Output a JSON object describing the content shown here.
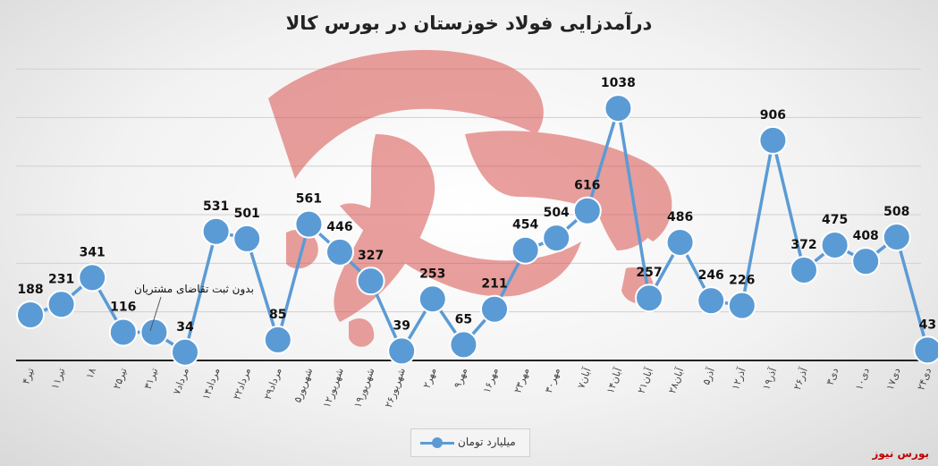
{
  "title": "درآمدزایی فولاد خوزستان در بورس کالا",
  "annotation": "بدون ثبت تقاضای مشتریان",
  "brand": "بورس نیوز",
  "colors": {
    "series": "#5b9bd5",
    "watermark": "#d9534f",
    "brand": "#c00000"
  },
  "chart_data": {
    "type": "line",
    "title": "درآمدزایی فولاد خوزستان در بورس کالا",
    "categories": [
      "۴تیر",
      "۱۱تیر",
      "۱۸",
      "۲۵تیر",
      "۳۱تیر",
      "۷مرداد",
      "۱۴مرداد",
      "۲۲مرداد",
      "۲۹مرداد",
      "۵شهریور",
      "۱۲شهریور",
      "۱۹شهریور",
      "۲۶شهریور",
      "۲مهر",
      "۹مهر",
      "۱۶مهر",
      "۲۳مهر",
      "۳۰مهر",
      "۷آبان",
      "۱۴آبان",
      "۲۱آبان",
      "۲۸آبان",
      "۵آذر",
      "۱۲آذر",
      "۱۹آذر",
      "۲۶آذر",
      "۳دی",
      "۱۰دی",
      "۱۷دی",
      "۲۴دی"
    ],
    "series": [
      {
        "name": "میلیارد تومان",
        "values": [
          188,
          231,
          341,
          116,
          116,
          34,
          531,
          501,
          85,
          561,
          446,
          327,
          39,
          253,
          65,
          211,
          454,
          504,
          616,
          1038,
          257,
          486,
          246,
          226,
          906,
          372,
          475,
          408,
          508,
          43
        ],
        "labels": [
          "188",
          "231",
          "341",
          "116",
          "",
          "34",
          "531",
          "501",
          "85",
          "561",
          "446",
          "327",
          "39",
          "253",
          "65",
          "211",
          "454",
          "504",
          "616",
          "1038",
          "257",
          "486",
          "246",
          "226",
          "906",
          "372",
          "475",
          "408",
          "508",
          "43"
        ]
      }
    ],
    "ylim": [
      0,
      1200
    ],
    "grid": true,
    "legend": "bottom"
  }
}
